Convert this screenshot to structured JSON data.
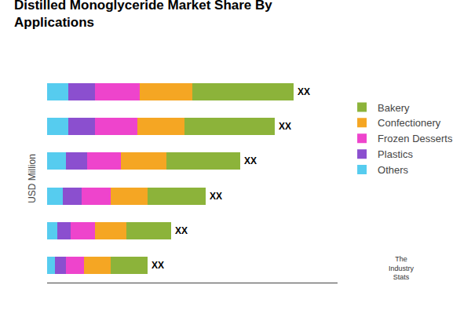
{
  "chart_data": {
    "type": "bar",
    "orientation": "horizontal",
    "stacked": true,
    "title": "Distilled Monoglyceride Market Share By\nApplications",
    "y_label": "USD Million",
    "categories": [
      null,
      null,
      null,
      null,
      null,
      null
    ],
    "series": [
      {
        "name": "Others",
        "color": "#56CCEF",
        "values": [
          0.08,
          0.08,
          0.07,
          0.06,
          0.04,
          0.03
        ]
      },
      {
        "name": "Plastics",
        "color": "#8B4FCF",
        "values": [
          0.1,
          0.1,
          0.08,
          0.07,
          0.05,
          0.04
        ]
      },
      {
        "name": "Frozen Desserts",
        "color": "#EE44CC",
        "values": [
          0.17,
          0.16,
          0.13,
          0.11,
          0.09,
          0.07
        ]
      },
      {
        "name": "Confectionery",
        "color": "#F5A623",
        "values": [
          0.2,
          0.18,
          0.17,
          0.14,
          0.12,
          0.1
        ]
      },
      {
        "name": "Bakery",
        "color": "#8CB33A",
        "values": [
          0.38,
          0.34,
          0.28,
          0.22,
          0.17,
          0.14
        ]
      }
    ],
    "annotations": [
      "XX",
      "XX",
      "XX",
      "XX",
      "XX",
      "XX",
      "The\nIndustry\nStats"
    ],
    "xlim": [
      0,
      1.0974
    ],
    "tick_labels": false,
    "grid": false,
    "legend": "right"
  }
}
